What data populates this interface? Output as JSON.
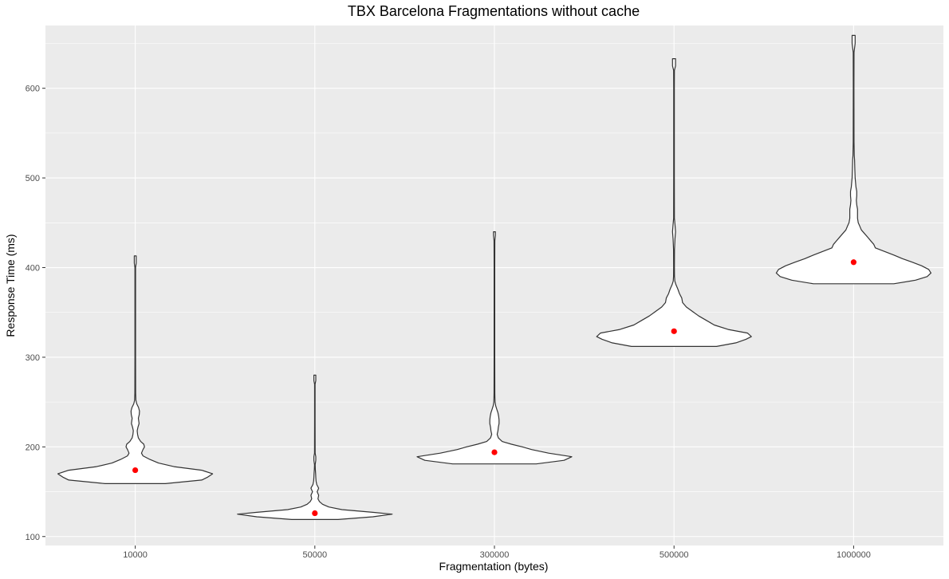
{
  "chart_data": {
    "type": "violin",
    "title": "TBX Barcelona Fragmentations without cache",
    "xlabel": "Fragmentation (bytes)",
    "ylabel": "Response Time (ms)",
    "categories": [
      "10000",
      "50000",
      "300000",
      "500000",
      "1000000"
    ],
    "yticks": [
      100,
      200,
      300,
      400,
      500,
      600
    ],
    "ylim": [
      90,
      670
    ],
    "grid": true,
    "colors": {
      "panel": "#ebebeb",
      "grid_major": "#ffffff",
      "violin_fill": "#ffffff",
      "violin_stroke": "#333333",
      "mean_point": "#ff0000"
    },
    "mean_points": [
      174,
      126,
      194,
      329,
      406
    ],
    "violins": [
      {
        "min": 159,
        "max": 413,
        "profile": [
          [
            159,
            0.39
          ],
          [
            163,
            0.86
          ],
          [
            166,
            0.93
          ],
          [
            170,
            1.0
          ],
          [
            174,
            0.86
          ],
          [
            178,
            0.5
          ],
          [
            182,
            0.3
          ],
          [
            186,
            0.19
          ],
          [
            190,
            0.1
          ],
          [
            193,
            0.08
          ],
          [
            197,
            0.1
          ],
          [
            200,
            0.12
          ],
          [
            203,
            0.11
          ],
          [
            206,
            0.07
          ],
          [
            210,
            0.04
          ],
          [
            214,
            0.03
          ],
          [
            218,
            0.025
          ],
          [
            222,
            0.035
          ],
          [
            226,
            0.05
          ],
          [
            232,
            0.04
          ],
          [
            236,
            0.052
          ],
          [
            240,
            0.055
          ],
          [
            244,
            0.042
          ],
          [
            248,
            0.02
          ],
          [
            252,
            0.008
          ],
          [
            260,
            0.005
          ],
          [
            300,
            0.004
          ],
          [
            400,
            0.004
          ],
          [
            405,
            0.012
          ],
          [
            413,
            0.012
          ]
        ]
      },
      {
        "min": 119,
        "max": 280,
        "profile": [
          [
            119,
            0.3
          ],
          [
            122,
            0.75
          ],
          [
            125,
            1.0
          ],
          [
            127,
            0.75
          ],
          [
            130,
            0.35
          ],
          [
            133,
            0.18
          ],
          [
            136,
            0.1
          ],
          [
            139,
            0.06
          ],
          [
            142,
            0.04
          ],
          [
            146,
            0.05
          ],
          [
            150,
            0.03
          ],
          [
            154,
            0.05
          ],
          [
            158,
            0.025
          ],
          [
            162,
            0.015
          ],
          [
            166,
            0.012
          ],
          [
            170,
            0.01
          ],
          [
            175,
            0.006
          ],
          [
            180,
            0.004
          ],
          [
            185,
            0.012
          ],
          [
            189,
            0.012
          ],
          [
            193,
            0.004
          ],
          [
            230,
            0.003
          ],
          [
            270,
            0.003
          ],
          [
            274,
            0.012
          ],
          [
            280,
            0.012
          ]
        ]
      },
      {
        "min": 181,
        "max": 440,
        "profile": [
          [
            181,
            0.54
          ],
          [
            185,
            0.9
          ],
          [
            189,
            1.0
          ],
          [
            193,
            0.7
          ],
          [
            197,
            0.48
          ],
          [
            200,
            0.36
          ],
          [
            203,
            0.22
          ],
          [
            206,
            0.1
          ],
          [
            210,
            0.05
          ],
          [
            214,
            0.035
          ],
          [
            218,
            0.045
          ],
          [
            222,
            0.05
          ],
          [
            226,
            0.06
          ],
          [
            230,
            0.06
          ],
          [
            234,
            0.055
          ],
          [
            238,
            0.045
          ],
          [
            242,
            0.03
          ],
          [
            246,
            0.015
          ],
          [
            250,
            0.008
          ],
          [
            255,
            0.006
          ],
          [
            260,
            0.005
          ],
          [
            300,
            0.004
          ],
          [
            400,
            0.004
          ],
          [
            430,
            0.005
          ],
          [
            436,
            0.012
          ],
          [
            440,
            0.012
          ]
        ]
      },
      {
        "min": 312,
        "max": 633,
        "profile": [
          [
            312,
            0.55
          ],
          [
            316,
            0.8
          ],
          [
            320,
            0.93
          ],
          [
            323,
            1.0
          ],
          [
            327,
            0.95
          ],
          [
            331,
            0.7
          ],
          [
            336,
            0.52
          ],
          [
            341,
            0.42
          ],
          [
            346,
            0.32
          ],
          [
            351,
            0.24
          ],
          [
            356,
            0.16
          ],
          [
            361,
            0.11
          ],
          [
            366,
            0.1
          ],
          [
            371,
            0.07
          ],
          [
            376,
            0.05
          ],
          [
            381,
            0.025
          ],
          [
            385,
            0.01
          ],
          [
            390,
            0.006
          ],
          [
            400,
            0.005
          ],
          [
            420,
            0.006
          ],
          [
            432,
            0.012
          ],
          [
            440,
            0.02
          ],
          [
            448,
            0.012
          ],
          [
            455,
            0.005
          ],
          [
            500,
            0.004
          ],
          [
            600,
            0.004
          ],
          [
            620,
            0.005
          ],
          [
            625,
            0.02
          ],
          [
            633,
            0.02
          ]
        ]
      },
      {
        "min": 382,
        "max": 659,
        "profile": [
          [
            382,
            0.52
          ],
          [
            386,
            0.8
          ],
          [
            390,
            0.95
          ],
          [
            394,
            1.0
          ],
          [
            398,
            0.97
          ],
          [
            402,
            0.88
          ],
          [
            406,
            0.76
          ],
          [
            410,
            0.63
          ],
          [
            414,
            0.52
          ],
          [
            418,
            0.4
          ],
          [
            422,
            0.28
          ],
          [
            426,
            0.26
          ],
          [
            430,
            0.22
          ],
          [
            434,
            0.18
          ],
          [
            438,
            0.14
          ],
          [
            442,
            0.1
          ],
          [
            446,
            0.08
          ],
          [
            450,
            0.06
          ],
          [
            455,
            0.05
          ],
          [
            460,
            0.05
          ],
          [
            465,
            0.05
          ],
          [
            470,
            0.04
          ],
          [
            475,
            0.035
          ],
          [
            480,
            0.04
          ],
          [
            485,
            0.04
          ],
          [
            490,
            0.03
          ],
          [
            495,
            0.025
          ],
          [
            500,
            0.02
          ],
          [
            510,
            0.015
          ],
          [
            520,
            0.012
          ],
          [
            525,
            0.008
          ],
          [
            540,
            0.005
          ],
          [
            600,
            0.004
          ],
          [
            640,
            0.005
          ],
          [
            650,
            0.02
          ],
          [
            659,
            0.02
          ]
        ]
      }
    ]
  }
}
